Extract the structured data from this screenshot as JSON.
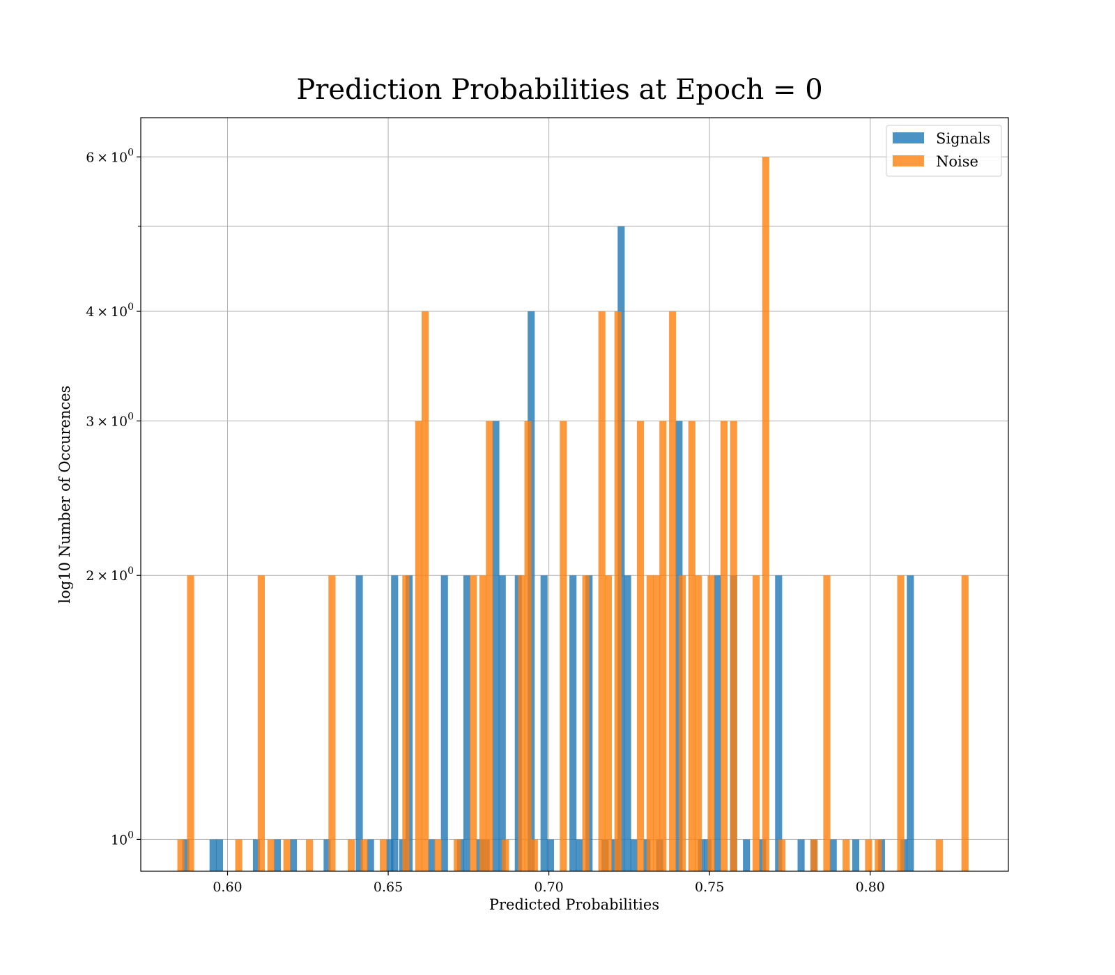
{
  "colors": {
    "signals": "#1f77b4",
    "noise": "#ff7f0e",
    "grid": "#b0b0b0"
  },
  "chart_data": {
    "type": "bar",
    "title": "Prediction Probabilities at Epoch = 0",
    "xlabel": "Predicted Probabilities",
    "ylabel": "log10 Number of Occurences",
    "yscale": "log",
    "xlim": [
      0.573,
      0.843
    ],
    "ylim": [
      0.92,
      6.65
    ],
    "xticks": [
      0.6,
      0.65,
      0.7,
      0.75,
      0.8
    ],
    "xtick_labels": [
      "0.60",
      "0.65",
      "0.70",
      "0.75",
      "0.80"
    ],
    "yticks": [
      1,
      2,
      3,
      4,
      6
    ],
    "ytick_labels": [
      {
        "mantissa": "",
        "exp": "0"
      },
      {
        "mantissa": "2",
        "exp": "0"
      },
      {
        "mantissa": "3",
        "exp": "0"
      },
      {
        "mantissa": "4",
        "exp": "0"
      },
      {
        "mantissa": "6",
        "exp": "0"
      }
    ],
    "minor_yticks": [
      5
    ],
    "grid": true,
    "legend_position": "top-right",
    "bar_width": 0.0022,
    "bar_alpha": 0.8,
    "series": [
      {
        "name": "Signals",
        "color": "#1f77b4",
        "x": [
          0.587,
          0.5955,
          0.5975,
          0.609,
          0.6155,
          0.6205,
          0.631,
          0.641,
          0.6445,
          0.6505,
          0.652,
          0.6545,
          0.6565,
          0.6635,
          0.6675,
          0.6725,
          0.6745,
          0.6785,
          0.6805,
          0.6835,
          0.6855,
          0.6905,
          0.6945,
          0.6985,
          0.7005,
          0.7075,
          0.7095,
          0.7125,
          0.7175,
          0.7205,
          0.7225,
          0.7245,
          0.7265,
          0.7305,
          0.7345,
          0.7405,
          0.7475,
          0.7495,
          0.7525,
          0.7575,
          0.7615,
          0.7665,
          0.7715,
          0.7785,
          0.7825,
          0.7885,
          0.7955,
          0.8035,
          0.8105,
          0.8125
        ],
        "values": [
          1,
          1,
          1,
          1,
          1,
          1,
          1,
          2,
          1,
          1,
          2,
          1,
          2,
          1,
          2,
          1,
          2,
          1,
          1,
          3,
          2,
          2,
          4,
          2,
          1,
          2,
          1,
          2,
          1,
          1,
          5,
          2,
          1,
          1,
          1,
          3,
          1,
          1,
          2,
          2,
          1,
          1,
          2,
          1,
          1,
          1,
          1,
          1,
          1,
          2
        ]
      },
      {
        "name": "Noise",
        "color": "#ff7f0e",
        "x": [
          0.5855,
          0.5885,
          0.6035,
          0.6105,
          0.6135,
          0.6185,
          0.6255,
          0.6325,
          0.6385,
          0.6425,
          0.6485,
          0.6555,
          0.6595,
          0.6615,
          0.6655,
          0.6715,
          0.6765,
          0.6795,
          0.6815,
          0.6865,
          0.6915,
          0.6935,
          0.6955,
          0.7045,
          0.7115,
          0.7165,
          0.7185,
          0.7215,
          0.7285,
          0.7315,
          0.7335,
          0.7355,
          0.7385,
          0.7415,
          0.7445,
          0.7465,
          0.7505,
          0.7545,
          0.7575,
          0.7645,
          0.7675,
          0.7725,
          0.7825,
          0.7865,
          0.7925,
          0.7995,
          0.8025,
          0.8095,
          0.8215,
          0.8295
        ],
        "values": [
          1,
          2,
          1,
          2,
          1,
          1,
          1,
          2,
          1,
          1,
          1,
          2,
          3,
          4,
          1,
          1,
          2,
          2,
          3,
          1,
          2,
          3,
          1,
          3,
          2,
          4,
          2,
          4,
          3,
          2,
          2,
          3,
          4,
          2,
          3,
          2,
          2,
          3,
          3,
          2,
          6,
          1,
          1,
          2,
          1,
          1,
          1,
          2,
          1,
          2
        ]
      }
    ]
  }
}
